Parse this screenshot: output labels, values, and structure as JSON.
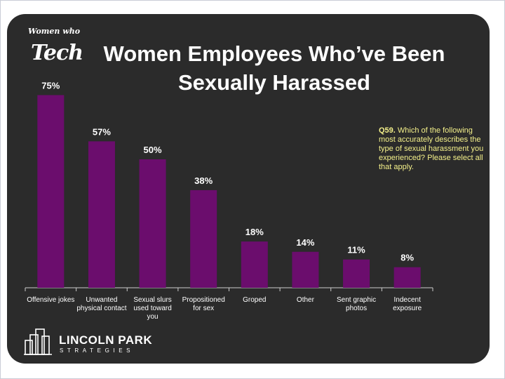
{
  "logo": {
    "line1": "Women who",
    "line2": "Tech"
  },
  "note": {
    "label": "Q59.",
    "text": "Which of the following most accurately describes the type of sexual harassment you experienced? Please select all that apply."
  },
  "footer": {
    "name": "LINCOLN PARK",
    "sub": "STRATEGIES"
  },
  "colors": {
    "bar": "#6b0d6d",
    "background": "#2b2b2b",
    "note": "#f4f08a",
    "axis": "#cccccc"
  },
  "chart_data": {
    "type": "bar",
    "title": "Women Employees Who’ve Been Sexually Harassed",
    "categories": [
      [
        "Offensive jokes"
      ],
      [
        "Unwanted",
        "physical contact"
      ],
      [
        "Sexual slurs",
        "used toward",
        "you"
      ],
      [
        "Propositioned",
        "for sex"
      ],
      [
        "Groped"
      ],
      [
        "Other"
      ],
      [
        "Sent graphic",
        "photos"
      ],
      [
        "Indecent",
        "exposure"
      ]
    ],
    "values": [
      75,
      57,
      50,
      38,
      18,
      14,
      11,
      8
    ],
    "data_labels": [
      "75%",
      "57%",
      "50%",
      "38%",
      "18%",
      "14%",
      "11%",
      "8%"
    ],
    "ylim": [
      0,
      100
    ],
    "grid": false,
    "legend": false
  }
}
